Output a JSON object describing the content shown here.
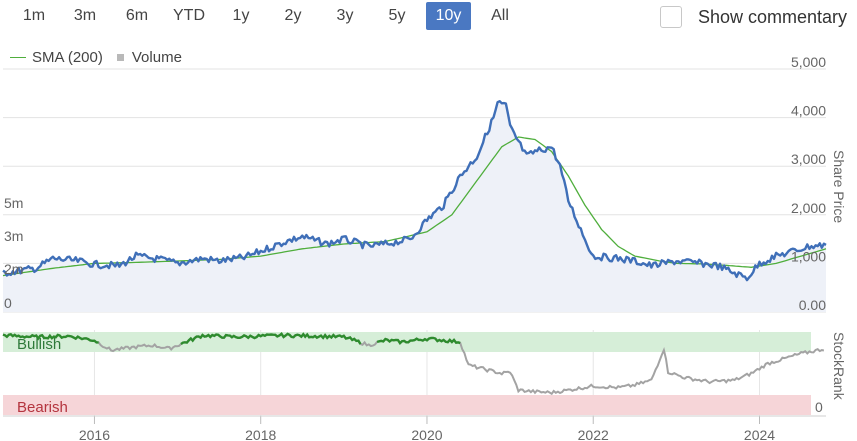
{
  "toolbar": {
    "ranges": [
      "1m",
      "3m",
      "6m",
      "YTD",
      "1y",
      "2y",
      "3y",
      "5y",
      "10y",
      "All"
    ],
    "active": "10y",
    "commentary_label": "Show commentary"
  },
  "legend": {
    "sma_label": "SMA (200)",
    "volume_label": "Volume"
  },
  "colors": {
    "price_line": "#3f6fb8",
    "sma_line": "#4fae3c",
    "bullish_band": "#d6eed8",
    "bearish_band": "#f6d5d8",
    "stockrank_grey": "#a3a3a3",
    "stockrank_green": "#2e8b2e",
    "active_button": "#4a78c2"
  },
  "chart_data": [
    {
      "type": "line",
      "ylabel": "Share Price",
      "ylim": [
        0,
        5000
      ],
      "y_ticks": [
        "5,000",
        "4,000",
        "3,000",
        "2,000",
        "1,000",
        "0.00"
      ],
      "volume_ticks": [
        "5m",
        "3m",
        "2m",
        "0"
      ],
      "x_ticks": [
        "2016",
        "2018",
        "2020",
        "2022",
        "2024"
      ],
      "xlim": [
        2014.9,
        2024.8
      ],
      "series": [
        {
          "name": "Share Price",
          "x": [
            2014.9,
            2015.3,
            2015.5,
            2015.8,
            2016.0,
            2016.3,
            2016.5,
            2016.8,
            2017.0,
            2017.3,
            2017.5,
            2017.8,
            2018.0,
            2018.3,
            2018.5,
            2018.8,
            2019.0,
            2019.3,
            2019.5,
            2019.8,
            2020.0,
            2020.2,
            2020.4,
            2020.6,
            2020.7,
            2020.8,
            2020.85,
            2020.95,
            2021.0,
            2021.1,
            2021.2,
            2021.3,
            2021.5,
            2021.6,
            2021.7,
            2021.8,
            2021.9,
            2022.0,
            2022.3,
            2022.5,
            2022.7,
            2023.0,
            2023.3,
            2023.5,
            2023.7,
            2023.85,
            2024.0,
            2024.2,
            2024.4,
            2024.6,
            2024.8
          ],
          "values": [
            800,
            900,
            1100,
            1050,
            980,
            950,
            1150,
            1080,
            1000,
            1100,
            1050,
            1120,
            1250,
            1450,
            1550,
            1400,
            1500,
            1350,
            1400,
            1500,
            1900,
            2200,
            2800,
            3200,
            3600,
            4000,
            4300,
            4250,
            3800,
            3500,
            3200,
            3300,
            3400,
            3000,
            2300,
            1900,
            1500,
            1150,
            1100,
            1050,
            950,
            1050,
            1000,
            950,
            800,
            700,
            1000,
            1150,
            1250,
            1350,
            1380
          ]
        },
        {
          "name": "SMA (200)",
          "x": [
            2014.9,
            2015.5,
            2016.0,
            2016.5,
            2017.0,
            2017.5,
            2018.0,
            2018.5,
            2019.0,
            2019.5,
            2020.0,
            2020.3,
            2020.6,
            2020.9,
            2021.1,
            2021.3,
            2021.5,
            2021.7,
            2021.9,
            2022.1,
            2022.3,
            2022.5,
            2022.8,
            2023.0,
            2023.3,
            2023.6,
            2023.9,
            2024.2,
            2024.5,
            2024.8
          ],
          "values": [
            750,
            900,
            1000,
            1020,
            1050,
            1080,
            1150,
            1300,
            1400,
            1450,
            1650,
            2000,
            2700,
            3400,
            3600,
            3550,
            3300,
            2800,
            2200,
            1700,
            1350,
            1150,
            1050,
            1000,
            990,
            960,
            920,
            1000,
            1150,
            1300
          ]
        }
      ]
    },
    {
      "type": "line",
      "ylabel": "StockRank",
      "band_labels": {
        "top": "Bullish",
        "bottom": "Bearish"
      },
      "y_tick": "0",
      "ylim": [
        0,
        100
      ],
      "series": [
        {
          "name": "StockRank",
          "x": [
            2014.9,
            2015.3,
            2015.7,
            2016.0,
            2016.2,
            2016.5,
            2016.7,
            2016.9,
            2017.3,
            2017.7,
            2018.0,
            2018.3,
            2018.7,
            2019.0,
            2019.3,
            2019.5,
            2019.7,
            2020.0,
            2020.2,
            2020.4,
            2020.5,
            2020.7,
            2020.9,
            2021.0,
            2021.1,
            2021.3,
            2021.5,
            2021.7,
            2022.0,
            2022.3,
            2022.5,
            2022.7,
            2022.85,
            2022.9,
            2023.1,
            2023.4,
            2023.7,
            2023.9,
            2024.1,
            2024.3,
            2024.5,
            2024.8
          ],
          "values": [
            96,
            94,
            95,
            90,
            78,
            82,
            84,
            80,
            96,
            94,
            95,
            96,
            95,
            94,
            84,
            90,
            88,
            92,
            90,
            88,
            60,
            55,
            50,
            52,
            30,
            28,
            27,
            30,
            35,
            33,
            36,
            42,
            80,
            52,
            45,
            40,
            42,
            50,
            62,
            68,
            74,
            80
          ]
        }
      ]
    }
  ]
}
